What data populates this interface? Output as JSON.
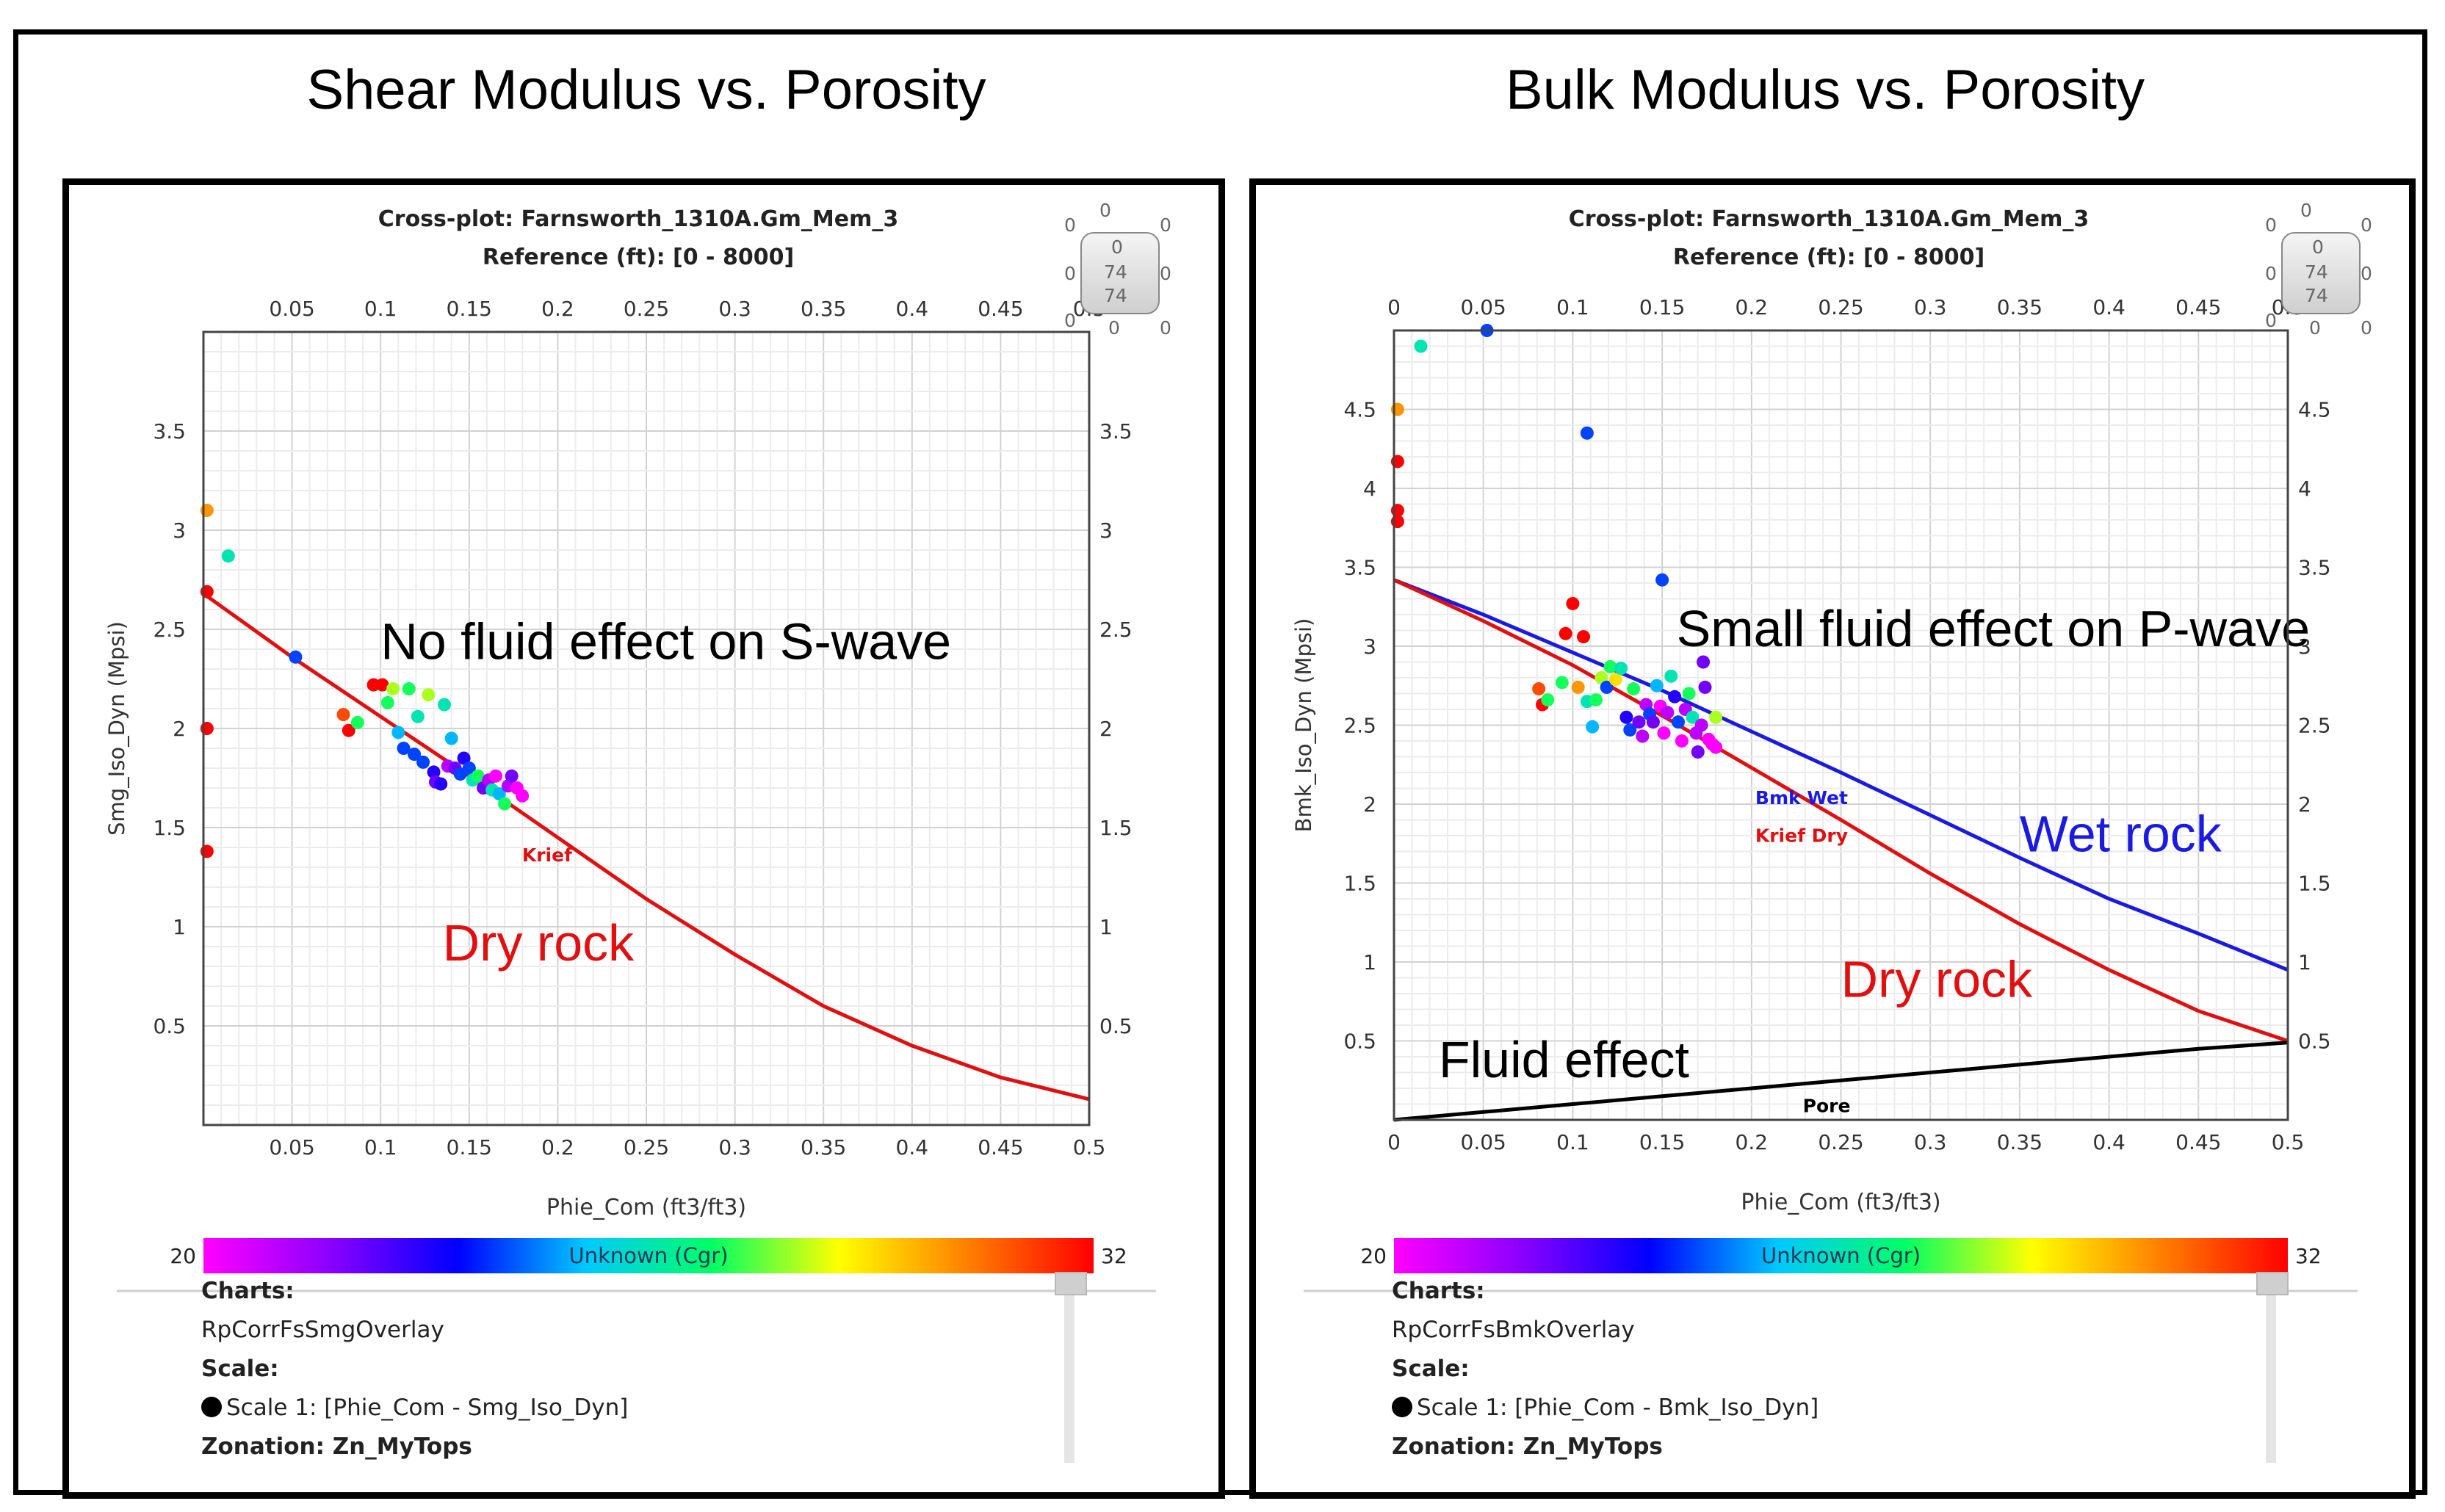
{
  "figure": {
    "left_title": "Shear Modulus vs. Porosity",
    "right_title": "Bulk Modulus vs. Porosity"
  },
  "colorbar": {
    "label": "Unknown (Cgr)",
    "min": "20",
    "max": "32",
    "colors": [
      "#ff00ff",
      "#8a00ff",
      "#0000ff",
      "#00c8ff",
      "#00ff64",
      "#ffff00",
      "#ff8000",
      "#ff0000"
    ]
  },
  "chart_data": [
    {
      "type": "scatter",
      "title": "Cross-plot: Farnsworth_1310A.Gm_Mem_3",
      "subtitle": "Reference (ft): [0 - 8000]",
      "xlabel": "Phie_Com (ft3/ft3)",
      "ylabel": "Smg_Iso_Dyn (Mpsi)",
      "xlim": [
        0,
        0.5
      ],
      "ylim": [
        0,
        4
      ],
      "x_ticks": [
        "0.05",
        "0.1",
        "0.15",
        "0.2",
        "0.25",
        "0.3",
        "0.35",
        "0.4",
        "0.45",
        "0.5"
      ],
      "y_ticks": [
        "0.5",
        "1",
        "1.5",
        "2",
        "2.5",
        "3",
        "3.5"
      ],
      "tick_values_x": [
        0.05,
        0.1,
        0.15,
        0.2,
        0.25,
        0.3,
        0.35,
        0.4,
        0.45,
        0.5
      ],
      "tick_values_y": [
        0.5,
        1,
        1.5,
        2,
        2.5,
        3,
        3.5
      ],
      "series": [
        {
          "name": "Krief",
          "color": "#e01010",
          "x": [
            0,
            0.05,
            0.1,
            0.15,
            0.2,
            0.25,
            0.3,
            0.35,
            0.4,
            0.45,
            0.5
          ],
          "y": [
            2.68,
            2.36,
            2.06,
            1.76,
            1.45,
            1.14,
            0.86,
            0.6,
            0.4,
            0.24,
            0.13
          ]
        }
      ],
      "points": [
        {
          "x": 0.002,
          "y": 3.1,
          "c": 30
        },
        {
          "x": 0.002,
          "y": 2.69,
          "c": 32
        },
        {
          "x": 0.002,
          "y": 2.0,
          "c": 32
        },
        {
          "x": 0.002,
          "y": 1.38,
          "c": 32
        },
        {
          "x": 0.014,
          "y": 2.87,
          "c": 26
        },
        {
          "x": 0.052,
          "y": 2.36,
          "c": 24
        },
        {
          "x": 0.079,
          "y": 2.07,
          "c": 31
        },
        {
          "x": 0.082,
          "y": 1.99,
          "c": 32
        },
        {
          "x": 0.087,
          "y": 2.03,
          "c": 27
        },
        {
          "x": 0.096,
          "y": 2.22,
          "c": 32
        },
        {
          "x": 0.101,
          "y": 2.22,
          "c": 32
        },
        {
          "x": 0.104,
          "y": 2.13,
          "c": 27
        },
        {
          "x": 0.107,
          "y": 2.2,
          "c": 28
        },
        {
          "x": 0.11,
          "y": 1.98,
          "c": 25
        },
        {
          "x": 0.113,
          "y": 1.9,
          "c": 24
        },
        {
          "x": 0.116,
          "y": 2.2,
          "c": 27
        },
        {
          "x": 0.119,
          "y": 1.87,
          "c": 24
        },
        {
          "x": 0.121,
          "y": 2.06,
          "c": 26
        },
        {
          "x": 0.124,
          "y": 1.83,
          "c": 24
        },
        {
          "x": 0.127,
          "y": 2.17,
          "c": 28
        },
        {
          "x": 0.13,
          "y": 1.78,
          "c": 23
        },
        {
          "x": 0.131,
          "y": 1.73,
          "c": 22
        },
        {
          "x": 0.134,
          "y": 1.72,
          "c": 23
        },
        {
          "x": 0.136,
          "y": 2.12,
          "c": 26
        },
        {
          "x": 0.138,
          "y": 1.81,
          "c": 21
        },
        {
          "x": 0.14,
          "y": 1.95,
          "c": 25
        },
        {
          "x": 0.142,
          "y": 1.8,
          "c": 22
        },
        {
          "x": 0.145,
          "y": 1.77,
          "c": 24
        },
        {
          "x": 0.147,
          "y": 1.85,
          "c": 23
        },
        {
          "x": 0.15,
          "y": 1.8,
          "c": 24
        },
        {
          "x": 0.152,
          "y": 1.74,
          "c": 26
        },
        {
          "x": 0.155,
          "y": 1.76,
          "c": 27
        },
        {
          "x": 0.158,
          "y": 1.7,
          "c": 22
        },
        {
          "x": 0.161,
          "y": 1.74,
          "c": 21
        },
        {
          "x": 0.163,
          "y": 1.69,
          "c": 26
        },
        {
          "x": 0.165,
          "y": 1.76,
          "c": 20
        },
        {
          "x": 0.167,
          "y": 1.67,
          "c": 25
        },
        {
          "x": 0.17,
          "y": 1.62,
          "c": 27
        },
        {
          "x": 0.172,
          "y": 1.71,
          "c": 21
        },
        {
          "x": 0.174,
          "y": 1.76,
          "c": 22
        },
        {
          "x": 0.177,
          "y": 1.7,
          "c": 20
        },
        {
          "x": 0.18,
          "y": 1.66,
          "c": 20
        }
      ],
      "series_labels": [
        {
          "text": "Krief",
          "x": 0.194,
          "y": 1.33,
          "color": "#e01010"
        }
      ],
      "annotations": [
        {
          "text": "No fluid effect on S-wave",
          "x": 0.1,
          "y": 2.35,
          "color": "#000000"
        },
        {
          "text": "Dry rock",
          "x": 0.135,
          "y": 0.83,
          "color": "#e01010"
        }
      ],
      "charts_label": "Charts:",
      "chart_name": "RpCorrFsSmgOverlay",
      "scale_label": "Scale:",
      "scale_entry": "Scale 1:  [Phie_Com - Smg_Iso_Dyn]",
      "zonation": "Zonation: Zn_MyTops",
      "zoom": {
        "top": "0",
        "left": "0",
        "right": "0",
        "center": [
          "0",
          "74",
          "74"
        ],
        "bottom_left": "0",
        "bottom_mid": "0",
        "bottom_right": "0",
        "mid_left": "0",
        "mid_right": "0"
      }
    },
    {
      "type": "scatter",
      "title": "Cross-plot: Farnsworth_1310A.Gm_Mem_3",
      "subtitle": "Reference (ft): [0 - 8000]",
      "xlabel": "Phie_Com (ft3/ft3)",
      "ylabel": "Bmk_Iso_Dyn (Mpsi)",
      "xlim": [
        0,
        0.5
      ],
      "ylim": [
        0,
        5
      ],
      "x_ticks": [
        "0",
        "0.05",
        "0.1",
        "0.15",
        "0.2",
        "0.25",
        "0.3",
        "0.35",
        "0.4",
        "0.45",
        "0.5"
      ],
      "y_ticks": [
        "0.5",
        "1",
        "1.5",
        "2",
        "2.5",
        "3",
        "3.5",
        "4",
        "4.5"
      ],
      "tick_values_x": [
        0,
        0.05,
        0.1,
        0.15,
        0.2,
        0.25,
        0.3,
        0.35,
        0.4,
        0.45,
        0.5
      ],
      "tick_values_y": [
        0.5,
        1,
        1.5,
        2,
        2.5,
        3,
        3.5,
        4,
        4.5
      ],
      "series": [
        {
          "name": "Bmk Wet",
          "color": "#1a1ae0",
          "x": [
            0,
            0.05,
            0.1,
            0.15,
            0.2,
            0.25,
            0.3,
            0.35,
            0.4,
            0.45,
            0.5
          ],
          "y": [
            3.42,
            3.2,
            2.96,
            2.72,
            2.46,
            2.2,
            1.93,
            1.66,
            1.4,
            1.18,
            0.95
          ]
        },
        {
          "name": "Krief Dry",
          "color": "#e01010",
          "x": [
            0,
            0.05,
            0.1,
            0.15,
            0.2,
            0.25,
            0.3,
            0.35,
            0.4,
            0.45,
            0.5
          ],
          "y": [
            3.42,
            3.16,
            2.88,
            2.56,
            2.23,
            1.9,
            1.56,
            1.24,
            0.95,
            0.69,
            0.5
          ]
        },
        {
          "name": "Pore",
          "color": "#000000",
          "x": [
            0,
            0.05,
            0.1,
            0.15,
            0.2,
            0.25,
            0.3,
            0.35,
            0.4,
            0.45,
            0.5
          ],
          "y": [
            0.0,
            0.05,
            0.1,
            0.15,
            0.2,
            0.25,
            0.3,
            0.35,
            0.4,
            0.45,
            0.49
          ]
        }
      ],
      "points": [
        {
          "x": 0.002,
          "y": 4.5,
          "c": 30
        },
        {
          "x": 0.002,
          "y": 4.17,
          "c": 32
        },
        {
          "x": 0.002,
          "y": 3.86,
          "c": 32
        },
        {
          "x": 0.002,
          "y": 3.79,
          "c": 32
        },
        {
          "x": 0.015,
          "y": 4.9,
          "c": 26
        },
        {
          "x": 0.052,
          "y": 5.0,
          "c": 24
        },
        {
          "x": 0.108,
          "y": 4.35,
          "c": 24
        },
        {
          "x": 0.15,
          "y": 3.42,
          "c": 24
        },
        {
          "x": 0.081,
          "y": 2.73,
          "c": 31
        },
        {
          "x": 0.083,
          "y": 2.63,
          "c": 32
        },
        {
          "x": 0.086,
          "y": 2.66,
          "c": 27
        },
        {
          "x": 0.094,
          "y": 2.77,
          "c": 27
        },
        {
          "x": 0.096,
          "y": 3.08,
          "c": 32
        },
        {
          "x": 0.1,
          "y": 3.27,
          "c": 32
        },
        {
          "x": 0.103,
          "y": 2.74,
          "c": 30
        },
        {
          "x": 0.106,
          "y": 3.06,
          "c": 32
        },
        {
          "x": 0.108,
          "y": 2.65,
          "c": 26
        },
        {
          "x": 0.111,
          "y": 2.49,
          "c": 25
        },
        {
          "x": 0.113,
          "y": 2.66,
          "c": 27
        },
        {
          "x": 0.116,
          "y": 2.8,
          "c": 28
        },
        {
          "x": 0.119,
          "y": 2.74,
          "c": 24
        },
        {
          "x": 0.121,
          "y": 2.87,
          "c": 27
        },
        {
          "x": 0.124,
          "y": 2.79,
          "c": 29
        },
        {
          "x": 0.127,
          "y": 2.86,
          "c": 26
        },
        {
          "x": 0.13,
          "y": 2.55,
          "c": 23
        },
        {
          "x": 0.132,
          "y": 2.47,
          "c": 24
        },
        {
          "x": 0.134,
          "y": 2.73,
          "c": 27
        },
        {
          "x": 0.137,
          "y": 2.52,
          "c": 22
        },
        {
          "x": 0.139,
          "y": 2.43,
          "c": 21
        },
        {
          "x": 0.141,
          "y": 2.63,
          "c": 21
        },
        {
          "x": 0.143,
          "y": 2.57,
          "c": 24
        },
        {
          "x": 0.145,
          "y": 2.52,
          "c": 22
        },
        {
          "x": 0.147,
          "y": 2.75,
          "c": 25
        },
        {
          "x": 0.149,
          "y": 2.62,
          "c": 20
        },
        {
          "x": 0.151,
          "y": 2.45,
          "c": 20
        },
        {
          "x": 0.153,
          "y": 2.58,
          "c": 21
        },
        {
          "x": 0.155,
          "y": 2.81,
          "c": 26
        },
        {
          "x": 0.157,
          "y": 2.68,
          "c": 23
        },
        {
          "x": 0.159,
          "y": 2.52,
          "c": 24
        },
        {
          "x": 0.161,
          "y": 2.4,
          "c": 20
        },
        {
          "x": 0.163,
          "y": 2.6,
          "c": 21
        },
        {
          "x": 0.165,
          "y": 2.7,
          "c": 27
        },
        {
          "x": 0.167,
          "y": 2.55,
          "c": 26
        },
        {
          "x": 0.169,
          "y": 2.45,
          "c": 21
        },
        {
          "x": 0.17,
          "y": 2.33,
          "c": 22
        },
        {
          "x": 0.172,
          "y": 2.5,
          "c": 21
        },
        {
          "x": 0.173,
          "y": 2.9,
          "c": 22
        },
        {
          "x": 0.174,
          "y": 2.74,
          "c": 22
        },
        {
          "x": 0.176,
          "y": 2.41,
          "c": 20
        },
        {
          "x": 0.178,
          "y": 2.38,
          "c": 20
        },
        {
          "x": 0.18,
          "y": 2.36,
          "c": 20
        },
        {
          "x": 0.18,
          "y": 2.55,
          "c": 28
        }
      ],
      "series_labels": [
        {
          "text": "Bmk Wet",
          "x": 0.228,
          "y": 2.0,
          "color": "#1a1ae0"
        },
        {
          "text": "Krief Dry",
          "x": 0.228,
          "y": 1.76,
          "color": "#e01010"
        },
        {
          "text": "Pore",
          "x": 0.242,
          "y": 0.05,
          "color": "#000000"
        }
      ],
      "annotations": [
        {
          "text": "Small fluid effect on P-wave",
          "x": 0.158,
          "y": 3.0,
          "color": "#000000"
        },
        {
          "text": "Wet rock",
          "x": 0.35,
          "y": 1.7,
          "color": "#1a1ae0"
        },
        {
          "text": "Dry rock",
          "x": 0.25,
          "y": 0.78,
          "color": "#e01010"
        },
        {
          "text": "Fluid effect",
          "x": 0.025,
          "y": 0.27,
          "color": "#000000"
        }
      ],
      "charts_label": "Charts:",
      "chart_name": "RpCorrFsBmkOverlay",
      "scale_label": "Scale:",
      "scale_entry": "Scale 1:  [Phie_Com - Bmk_Iso_Dyn]",
      "zonation": "Zonation: Zn_MyTops",
      "zoom": {
        "top": "0",
        "left": "0",
        "right": "0",
        "center": [
          "0",
          "74",
          "74"
        ],
        "bottom_left": "0",
        "bottom_mid": "0",
        "bottom_right": "0",
        "mid_left": "0",
        "mid_right": "0"
      }
    }
  ]
}
